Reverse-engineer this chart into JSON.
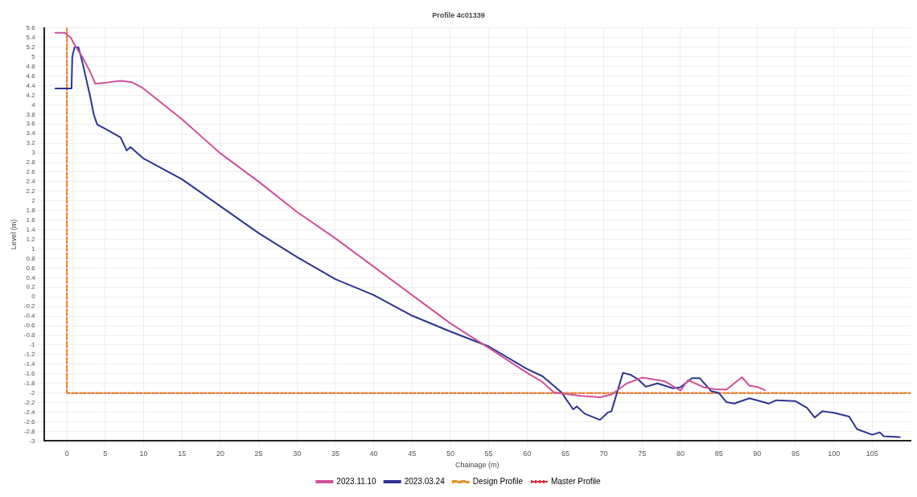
{
  "chart_data": {
    "type": "line",
    "title": "Profile 4c01339",
    "xlabel": "Chainage (m)",
    "ylabel": "Level (m)",
    "xlim": [
      -3,
      110
    ],
    "xticks": [
      0,
      5,
      10,
      15,
      20,
      25,
      30,
      35,
      40,
      45,
      50,
      55,
      60,
      65,
      70,
      75,
      80,
      85,
      90,
      95,
      100,
      105
    ],
    "ylim": [
      -3,
      5.6
    ],
    "yticks": [
      -3,
      -2.8,
      -2.6,
      -2.4,
      -2.2,
      -2,
      -1.8,
      -1.6,
      -1.4,
      -1.2,
      -1,
      -0.8,
      -0.6,
      -0.4,
      -0.2,
      0,
      0.2,
      0.4,
      0.6,
      0.8,
      1,
      1.2,
      1.4,
      1.6,
      1.8,
      2,
      2.2,
      2.4,
      2.6,
      2.8,
      3,
      3.2,
      3.4,
      3.6,
      3.8,
      4,
      4.2,
      4.4,
      4.6,
      4.8,
      5,
      5.2,
      5.4,
      5.6
    ],
    "grid": true,
    "legend": "bottom",
    "marker": "none",
    "series": [
      {
        "name": "2023.11.10",
        "color": "#d0509a",
        "line_style": "solid",
        "x": [
          -1.5,
          -0.3,
          0.5,
          1,
          2,
          3,
          3.7,
          5,
          7,
          8.5,
          9.9,
          15,
          20,
          25,
          30,
          35,
          40,
          45,
          50,
          55,
          60,
          62,
          63.5,
          67,
          69.5,
          71,
          73,
          75,
          77,
          78,
          80,
          81,
          83,
          84.5,
          86,
          88,
          89,
          90,
          91
        ],
        "values": [
          5.5,
          5.5,
          5.4,
          5.25,
          5.0,
          4.7,
          4.44,
          4.46,
          4.5,
          4.47,
          4.35,
          3.7,
          2.99,
          2.4,
          1.77,
          1.22,
          0.63,
          0.04,
          -0.55,
          -1.06,
          -1.58,
          -1.77,
          -1.99,
          -2.06,
          -2.09,
          -2.03,
          -1.8,
          -1.68,
          -1.73,
          -1.76,
          -1.95,
          -1.73,
          -1.88,
          -1.92,
          -1.93,
          -1.67,
          -1.85,
          -1.87,
          -1.94
        ]
      },
      {
        "name": "2023.03.24",
        "color": "#2c3391",
        "line_style": "solid",
        "x": [
          -1.5,
          0.6,
          0.7,
          1,
          1.5,
          2,
          3,
          3.5,
          3.95,
          5,
          7,
          7.8,
          8.3,
          10,
          15,
          20,
          25,
          30,
          35,
          40,
          45,
          50,
          55,
          60,
          62,
          64.5,
          66,
          66.5,
          67.5,
          69.5,
          70.5,
          71,
          72.5,
          73.5,
          74.5,
          75.5,
          77,
          79,
          80,
          81.5,
          82.5,
          84,
          85,
          86,
          87,
          89,
          91.5,
          92.5,
          95,
          96.5,
          97.5,
          98.5,
          100,
          102,
          103,
          105,
          106,
          106.5,
          108.6
        ],
        "values": [
          4.34,
          4.34,
          5.0,
          5.2,
          5.2,
          4.9,
          4.2,
          3.8,
          3.59,
          3.5,
          3.32,
          3.05,
          3.12,
          2.88,
          2.45,
          1.89,
          1.33,
          0.83,
          0.37,
          0.04,
          -0.39,
          -0.72,
          -1.03,
          -1.5,
          -1.65,
          -1.99,
          -2.34,
          -2.28,
          -2.43,
          -2.56,
          -2.41,
          -2.38,
          -1.58,
          -1.62,
          -1.72,
          -1.87,
          -1.8,
          -1.9,
          -1.88,
          -1.69,
          -1.69,
          -1.96,
          -2.0,
          -2.19,
          -2.22,
          -2.11,
          -2.22,
          -2.15,
          -2.17,
          -2.31,
          -2.51,
          -2.38,
          -2.41,
          -2.49,
          -2.75,
          -2.87,
          -2.82,
          -2.9,
          -2.92
        ]
      },
      {
        "name": "Design Profile",
        "color": "#e8902a",
        "line_style": "dashed",
        "x": [
          0,
          0,
          110
        ],
        "values": [
          5.6,
          -2,
          -2
        ]
      },
      {
        "name": "Master Profile",
        "color": "#e0303a",
        "line_style": "dotted",
        "x": [
          0,
          0,
          110
        ],
        "values": [
          5.6,
          -2,
          -2
        ]
      }
    ]
  }
}
